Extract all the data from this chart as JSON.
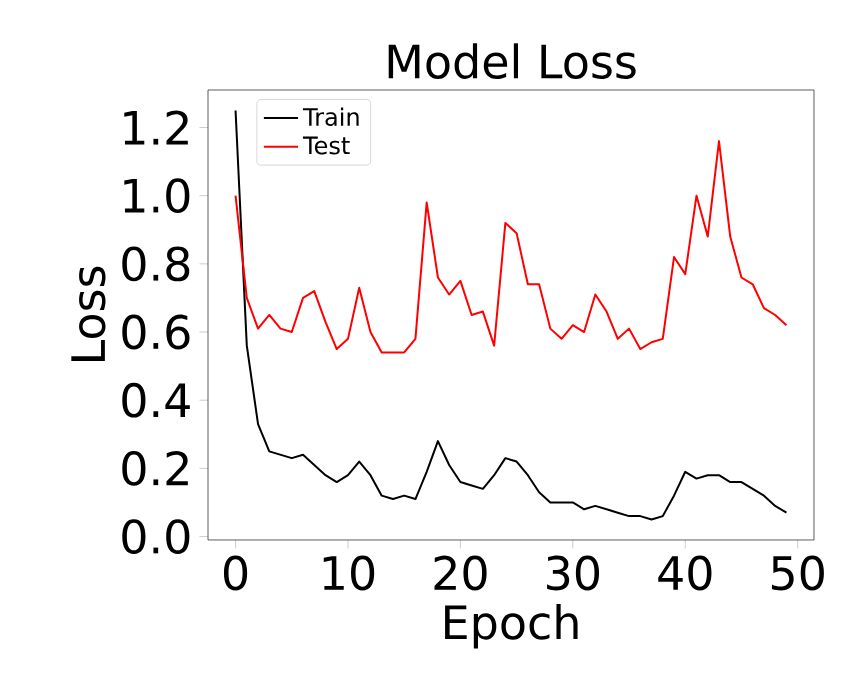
{
  "chart_data": {
    "type": "line",
    "title": "Model Loss",
    "xlabel": "Epoch",
    "ylabel": "Loss",
    "x": [
      0,
      1,
      2,
      3,
      4,
      5,
      6,
      7,
      8,
      9,
      10,
      11,
      12,
      13,
      14,
      15,
      16,
      17,
      18,
      19,
      20,
      21,
      22,
      23,
      24,
      25,
      26,
      27,
      28,
      29,
      30,
      31,
      32,
      33,
      34,
      35,
      36,
      37,
      38,
      39,
      40,
      41,
      42,
      43,
      44,
      45,
      46,
      47,
      48,
      49
    ],
    "series": [
      {
        "name": "Train",
        "color": "#000000",
        "values": [
          1.25,
          0.56,
          0.33,
          0.25,
          0.24,
          0.23,
          0.24,
          0.21,
          0.18,
          0.16,
          0.18,
          0.22,
          0.18,
          0.12,
          0.11,
          0.12,
          0.11,
          0.19,
          0.28,
          0.21,
          0.16,
          0.15,
          0.14,
          0.18,
          0.23,
          0.22,
          0.18,
          0.13,
          0.1,
          0.1,
          0.1,
          0.08,
          0.09,
          0.08,
          0.07,
          0.06,
          0.06,
          0.05,
          0.06,
          0.12,
          0.19,
          0.17,
          0.18,
          0.18,
          0.16,
          0.16,
          0.14,
          0.12,
          0.09,
          0.07
        ]
      },
      {
        "name": "Test",
        "color": "#ff0000",
        "values": [
          1.0,
          0.7,
          0.61,
          0.65,
          0.61,
          0.6,
          0.7,
          0.72,
          0.63,
          0.55,
          0.58,
          0.73,
          0.6,
          0.54,
          0.54,
          0.54,
          0.58,
          0.98,
          0.76,
          0.71,
          0.75,
          0.65,
          0.66,
          0.56,
          0.92,
          0.89,
          0.74,
          0.74,
          0.61,
          0.58,
          0.62,
          0.6,
          0.71,
          0.66,
          0.58,
          0.61,
          0.55,
          0.57,
          0.58,
          0.82,
          0.77,
          1.0,
          0.88,
          1.16,
          0.88,
          0.76,
          0.74,
          0.67,
          0.65,
          0.62
        ]
      }
    ],
    "xlim": [
      -2.45,
      51.45
    ],
    "ylim": [
      -0.01,
      1.31
    ],
    "xticks": [
      0,
      10,
      20,
      30,
      40,
      50
    ],
    "yticks": [
      {
        "value": 0,
        "label": "0.0"
      },
      0.2,
      0.4,
      0.6,
      0.8,
      {
        "value": 1,
        "label": "1.0"
      },
      1.2
    ],
    "grid": false,
    "legend": "top left",
    "line_style": "solid",
    "marker": "none"
  }
}
